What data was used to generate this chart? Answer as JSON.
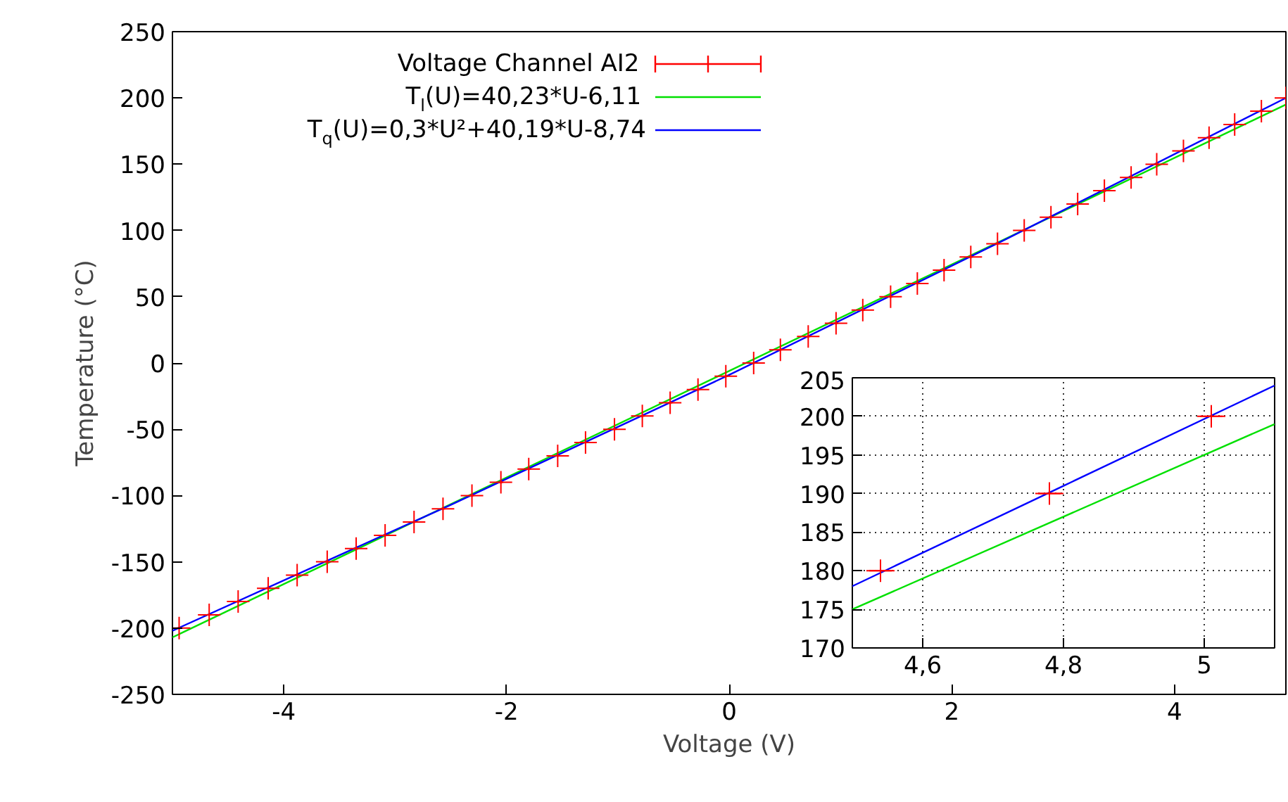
{
  "chart_data": [
    {
      "type": "scatter",
      "xlabel": "Voltage (V)",
      "ylabel": "Temperature (°C)",
      "xlim": [
        -5,
        5
      ],
      "xticks": [
        -4,
        -2,
        0,
        2,
        4
      ],
      "ylim": [
        -250,
        250
      ],
      "yticks": [
        -250,
        -200,
        -150,
        -100,
        -50,
        0,
        50,
        100,
        150,
        200,
        250
      ],
      "grid": false,
      "legend": "top left",
      "series": [
        {
          "name": "Voltage Channel AI2",
          "marker": "cross",
          "color": "#ff0000",
          "x": [
            -4.94,
            -4.67,
            -4.41,
            -4.14,
            -3.88,
            -3.61,
            -3.35,
            -3.09,
            -2.83,
            -2.57,
            -2.31,
            -2.05,
            -1.8,
            -1.54,
            -1.29,
            -1.03,
            -0.78,
            -0.53,
            -0.28,
            -0.03,
            0.22,
            0.46,
            0.71,
            0.96,
            1.2,
            1.45,
            1.69,
            1.93,
            2.17,
            2.41,
            2.65,
            2.89,
            3.13,
            3.37,
            3.61,
            3.84,
            4.08,
            4.31,
            4.54,
            4.78,
            5.0
          ],
          "values": [
            -200,
            -190,
            -180,
            -170,
            -160,
            -150,
            -140,
            -130,
            -120,
            -110,
            -100,
            -90,
            -80,
            -70,
            -60,
            -50,
            -40,
            -30,
            -20,
            -10,
            0,
            10,
            20,
            30,
            40,
            50,
            60,
            70,
            80,
            90,
            100,
            110,
            120,
            130,
            140,
            150,
            160,
            170,
            180,
            190,
            200
          ],
          "xerrors": [
            0.02,
            0.02,
            0.02,
            0.02,
            0.02,
            0.02,
            0.02,
            0.02,
            0.02,
            0.02,
            0.02,
            0.02,
            0.02,
            0.02,
            0.02,
            0.02,
            0.02,
            0.02,
            0.02,
            0.02,
            0.02,
            0.02,
            0.02,
            0.02,
            0.02,
            0.02,
            0.02,
            0.02,
            0.02,
            0.02,
            0.02,
            0.02,
            0.02,
            0.02,
            0.02,
            0.02,
            0.02,
            0.02,
            0.02,
            0.02,
            0.02
          ],
          "errors": [
            1,
            1,
            1,
            1,
            1,
            1,
            1,
            1,
            1,
            1,
            1,
            1,
            1,
            1,
            1,
            1,
            1,
            1,
            1,
            1,
            1,
            1,
            1,
            1,
            1,
            1,
            1,
            1,
            1,
            1,
            1,
            1,
            1,
            1,
            1,
            1,
            1,
            1,
            1,
            1,
            1
          ]
        },
        {
          "name": "T$_{l}$(U)=40,23*U-6,11",
          "type": "line",
          "color": "#00e000",
          "x": [
            -5,
            5
          ],
          "values": [
            -207,
            195
          ]
        },
        {
          "name": "T$_{q}$(U)=0,3*U²+40,19*U-8,74",
          "type": "line",
          "color": "#0000ff",
          "x": [
            -5,
            -2.5,
            0,
            2.5,
            5
          ],
          "values": [
            -202,
            -107,
            -9,
            94,
            200
          ]
        }
      ]
    },
    {
      "type": "scatter",
      "xlim": [
        4.5,
        5.1
      ],
      "xticks": [
        {
          "value": 4.6,
          "label": "4,6"
        },
        {
          "value": 4.8,
          "label": "4,8"
        },
        {
          "value": 5,
          "label": "5"
        }
      ],
      "ylim": [
        170,
        205
      ],
      "yticks": [
        170,
        175,
        180,
        185,
        190,
        195,
        200,
        205
      ],
      "grid": true,
      "series": [
        {
          "marker": "cross",
          "color": "#ff0000",
          "x": [
            4.54,
            4.78,
            5.01
          ],
          "values": [
            180,
            190,
            200
          ],
          "xerrors": [
            0.02,
            0.02,
            0.02
          ],
          "errors": [
            1,
            1,
            1
          ]
        },
        {
          "type": "line",
          "color": "#00e000",
          "x": [
            4.5,
            5.1
          ],
          "values": [
            175,
            199
          ]
        },
        {
          "type": "line",
          "color": "#0000ff",
          "x": [
            4.5,
            4.8,
            5.1
          ],
          "values": [
            178,
            191,
            204
          ]
        }
      ]
    }
  ]
}
